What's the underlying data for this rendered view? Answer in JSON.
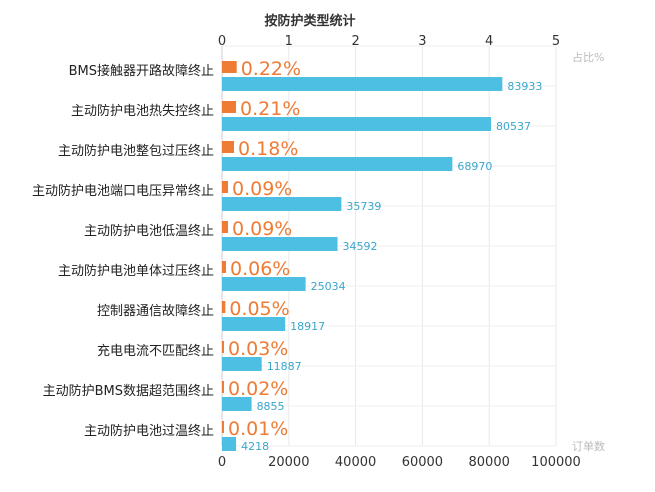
{
  "chart_data": {
    "type": "bar",
    "title": "按防护类型统计",
    "categories": [
      "BMS接触器开路故障终止",
      "主动防护电池热失控终止",
      "主动防护电池整包过压终止",
      "主动防护电池端口电压异常终止",
      "主动防护电池低温终止",
      "主动防护电池单体过压终止",
      "控制器通信故障终止",
      "充电电流不匹配终止",
      "主动防护BMS数据超范围终止",
      "主动防护电池过温终止"
    ],
    "series": [
      {
        "name": "占比%",
        "axis": "top",
        "values": [
          0.22,
          0.21,
          0.18,
          0.09,
          0.09,
          0.06,
          0.05,
          0.03,
          0.02,
          0.01
        ],
        "labels": [
          "0.22%",
          "0.21%",
          "0.18%",
          "0.09%",
          "0.09%",
          "0.06%",
          "0.05%",
          "0.03%",
          "0.02%",
          "0.01%"
        ],
        "color": "#ee7c35"
      },
      {
        "name": "订单数",
        "axis": "bottom",
        "values": [
          83933,
          80537,
          68970,
          35739,
          34592,
          25034,
          18917,
          11887,
          8855,
          4218
        ],
        "labels": [
          "83933",
          "80537",
          "68970",
          "35739",
          "34592",
          "25034",
          "18917",
          "11887",
          "8855",
          "4218"
        ],
        "color": "#4cbfe3"
      }
    ],
    "top_axis": {
      "label": "占比%",
      "range": [
        0,
        5
      ],
      "ticks": [
        "0",
        "1",
        "2",
        "3",
        "4",
        "5"
      ]
    },
    "bottom_axis": {
      "label": "订单数",
      "range": [
        0,
        100000
      ],
      "ticks": [
        "0",
        "20000",
        "40000",
        "60000",
        "80000",
        "100000"
      ]
    },
    "grid": true,
    "legend": "none"
  }
}
